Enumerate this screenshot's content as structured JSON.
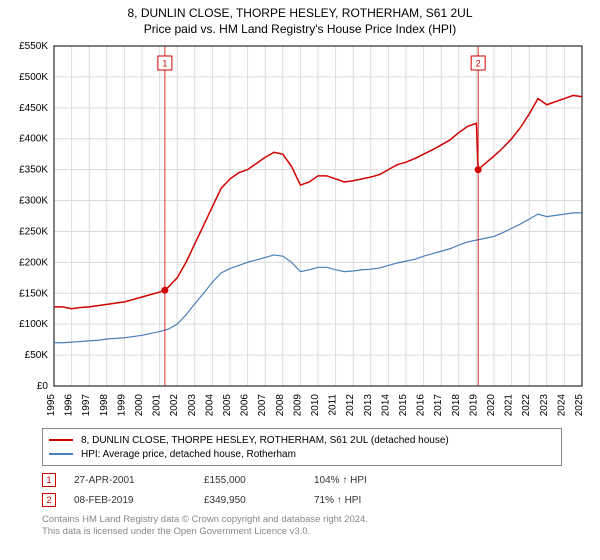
{
  "title_line1": "8, DUNLIN CLOSE, THORPE HESLEY, ROTHERHAM, S61 2UL",
  "title_line2": "Price paid vs. HM Land Registry's House Price Index (HPI)",
  "chart": {
    "type": "line",
    "background_color": "#ffffff",
    "grid_color": "#dcdcdc",
    "axis_color": "#000000",
    "x_years": [
      1995,
      1996,
      1997,
      1998,
      1999,
      2000,
      2001,
      2002,
      2003,
      2004,
      2005,
      2006,
      2007,
      2008,
      2009,
      2010,
      2011,
      2012,
      2013,
      2014,
      2015,
      2016,
      2017,
      2018,
      2019,
      2020,
      2021,
      2022,
      2023,
      2024,
      2025
    ],
    "x_min": 1995,
    "x_max": 2025,
    "ylim": [
      0,
      550000
    ],
    "ytick_step": 50000,
    "ytick_labels": [
      "£0",
      "£50K",
      "£100K",
      "£150K",
      "£200K",
      "£250K",
      "£300K",
      "£350K",
      "£400K",
      "£450K",
      "£500K",
      "£550K"
    ],
    "xtick_fontsize": 10,
    "ytick_fontsize": 10,
    "series": [
      {
        "name": "property",
        "label": "8, DUNLIN CLOSE, THORPE HESLEY, ROTHERHAM, S61 2UL (detached house)",
        "color": "#d00000",
        "line_width": 1.5,
        "data": [
          [
            1995.0,
            128000
          ],
          [
            1995.5,
            128000
          ],
          [
            1996.0,
            125000
          ],
          [
            1996.5,
            127000
          ],
          [
            1997.0,
            128000
          ],
          [
            1997.5,
            130000
          ],
          [
            1998.0,
            132000
          ],
          [
            1998.5,
            134000
          ],
          [
            1999.0,
            136000
          ],
          [
            1999.5,
            140000
          ],
          [
            2000.0,
            144000
          ],
          [
            2000.5,
            148000
          ],
          [
            2001.0,
            152000
          ],
          [
            2001.3,
            155000
          ],
          [
            2001.5,
            160000
          ],
          [
            2002.0,
            175000
          ],
          [
            2002.5,
            200000
          ],
          [
            2003.0,
            230000
          ],
          [
            2003.5,
            260000
          ],
          [
            2004.0,
            290000
          ],
          [
            2004.5,
            320000
          ],
          [
            2005.0,
            335000
          ],
          [
            2005.5,
            345000
          ],
          [
            2006.0,
            350000
          ],
          [
            2006.5,
            360000
          ],
          [
            2007.0,
            370000
          ],
          [
            2007.5,
            378000
          ],
          [
            2008.0,
            375000
          ],
          [
            2008.5,
            355000
          ],
          [
            2009.0,
            325000
          ],
          [
            2009.5,
            330000
          ],
          [
            2010.0,
            340000
          ],
          [
            2010.5,
            340000
          ],
          [
            2011.0,
            335000
          ],
          [
            2011.5,
            330000
          ],
          [
            2012.0,
            332000
          ],
          [
            2012.5,
            335000
          ],
          [
            2013.0,
            338000
          ],
          [
            2013.5,
            342000
          ],
          [
            2014.0,
            350000
          ],
          [
            2014.5,
            358000
          ],
          [
            2015.0,
            362000
          ],
          [
            2015.5,
            368000
          ],
          [
            2016.0,
            375000
          ],
          [
            2016.5,
            382000
          ],
          [
            2017.0,
            390000
          ],
          [
            2017.5,
            398000
          ],
          [
            2018.0,
            410000
          ],
          [
            2018.5,
            420000
          ],
          [
            2019.0,
            425000
          ],
          [
            2019.1,
            349950
          ],
          [
            2019.5,
            360000
          ],
          [
            2020.0,
            372000
          ],
          [
            2020.5,
            385000
          ],
          [
            2021.0,
            400000
          ],
          [
            2021.5,
            418000
          ],
          [
            2022.0,
            440000
          ],
          [
            2022.5,
            465000
          ],
          [
            2023.0,
            455000
          ],
          [
            2023.5,
            460000
          ],
          [
            2024.0,
            465000
          ],
          [
            2024.5,
            470000
          ],
          [
            2025.0,
            468000
          ]
        ]
      },
      {
        "name": "hpi",
        "label": "HPI: Average price, detached house, Rotherham",
        "color": "#4a7ebb",
        "line_width": 1.2,
        "data": [
          [
            1995.0,
            70000
          ],
          [
            1995.5,
            70000
          ],
          [
            1996.0,
            71000
          ],
          [
            1996.5,
            72000
          ],
          [
            1997.0,
            73000
          ],
          [
            1997.5,
            74000
          ],
          [
            1998.0,
            76000
          ],
          [
            1998.5,
            77000
          ],
          [
            1999.0,
            78000
          ],
          [
            1999.5,
            80000
          ],
          [
            2000.0,
            82000
          ],
          [
            2000.5,
            85000
          ],
          [
            2001.0,
            88000
          ],
          [
            2001.5,
            92000
          ],
          [
            2002.0,
            100000
          ],
          [
            2002.5,
            115000
          ],
          [
            2003.0,
            133000
          ],
          [
            2003.5,
            150000
          ],
          [
            2004.0,
            168000
          ],
          [
            2004.5,
            183000
          ],
          [
            2005.0,
            190000
          ],
          [
            2005.5,
            195000
          ],
          [
            2006.0,
            200000
          ],
          [
            2006.5,
            204000
          ],
          [
            2007.0,
            208000
          ],
          [
            2007.5,
            212000
          ],
          [
            2008.0,
            210000
          ],
          [
            2008.5,
            200000
          ],
          [
            2009.0,
            185000
          ],
          [
            2009.5,
            188000
          ],
          [
            2010.0,
            192000
          ],
          [
            2010.5,
            192000
          ],
          [
            2011.0,
            188000
          ],
          [
            2011.5,
            185000
          ],
          [
            2012.0,
            186000
          ],
          [
            2012.5,
            188000
          ],
          [
            2013.0,
            189000
          ],
          [
            2013.5,
            191000
          ],
          [
            2014.0,
            195000
          ],
          [
            2014.5,
            199000
          ],
          [
            2015.0,
            202000
          ],
          [
            2015.5,
            205000
          ],
          [
            2016.0,
            210000
          ],
          [
            2016.5,
            214000
          ],
          [
            2017.0,
            218000
          ],
          [
            2017.5,
            222000
          ],
          [
            2018.0,
            228000
          ],
          [
            2018.5,
            233000
          ],
          [
            2019.0,
            236000
          ],
          [
            2019.5,
            239000
          ],
          [
            2020.0,
            242000
          ],
          [
            2020.5,
            248000
          ],
          [
            2021.0,
            255000
          ],
          [
            2021.5,
            262000
          ],
          [
            2022.0,
            270000
          ],
          [
            2022.5,
            278000
          ],
          [
            2023.0,
            274000
          ],
          [
            2023.5,
            276000
          ],
          [
            2024.0,
            278000
          ],
          [
            2024.5,
            280000
          ],
          [
            2025.0,
            280000
          ]
        ]
      }
    ],
    "sale_markers": [
      {
        "n": "1",
        "x": 2001.3,
        "y": 155000,
        "color": "#d00000"
      },
      {
        "n": "2",
        "x": 2019.1,
        "y": 349950,
        "color": "#d00000"
      }
    ]
  },
  "legend": {
    "border_color": "#888888",
    "fontsize": 10,
    "items": [
      {
        "color": "#d00000",
        "label": "8, DUNLIN CLOSE, THORPE HESLEY, ROTHERHAM, S61 2UL (detached house)"
      },
      {
        "color": "#4a7ebb",
        "label": "HPI: Average price, detached house, Rotherham"
      }
    ]
  },
  "marker_table": {
    "rows": [
      {
        "badge": "1",
        "badge_color": "#d00000",
        "date": "27-APR-2001",
        "price": "£155,000",
        "pct": "104% ↑ HPI"
      },
      {
        "badge": "2",
        "badge_color": "#d00000",
        "date": "08-FEB-2019",
        "price": "£349,950",
        "pct": "71% ↑ HPI"
      }
    ]
  },
  "footer": {
    "line1": "Contains HM Land Registry data © Crown copyright and database right 2024.",
    "line2": "This data is licensed under the Open Government Licence v3.0.",
    "color": "#888888"
  }
}
